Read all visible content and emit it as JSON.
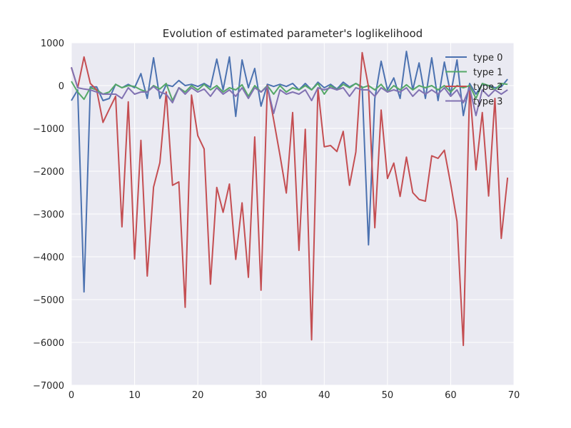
{
  "chart_data": {
    "type": "line",
    "title": "Evolution of estimated parameter's loglikelihood",
    "xlabel": "",
    "ylabel": "",
    "xlim": [
      0,
      70
    ],
    "ylim": [
      -7000,
      1000
    ],
    "x_ticks": [
      0,
      10,
      20,
      30,
      40,
      50,
      60,
      70
    ],
    "y_ticks": [
      1000,
      0,
      -1000,
      -2000,
      -3000,
      -4000,
      -5000,
      -6000,
      -7000
    ],
    "x_tick_labels": [
      "0",
      "10",
      "20",
      "30",
      "40",
      "50",
      "60",
      "70"
    ],
    "y_tick_labels": [
      "1000",
      "0",
      "−1000",
      "−2000",
      "−3000",
      "−4000",
      "−5000",
      "−6000",
      "−7000"
    ],
    "grid": true,
    "legend_position": "top-right",
    "background_color": "#eaeaf2",
    "series": [
      {
        "name": "type 0",
        "color": "#4c72b0",
        "values": [
          -350,
          -100,
          -4820,
          -30,
          -30,
          -350,
          -300,
          30,
          -50,
          30,
          -50,
          280,
          -300,
          650,
          -300,
          20,
          -20,
          120,
          0,
          30,
          -20,
          50,
          -40,
          620,
          -100,
          670,
          -720,
          600,
          -50,
          400,
          -480,
          30,
          -20,
          30,
          -20,
          50,
          -100,
          50,
          -100,
          80,
          -50,
          30,
          -80,
          80,
          -30,
          50,
          -30,
          -3720,
          -300,
          570,
          -100,
          180,
          -300,
          800,
          -100,
          530,
          -300,
          650,
          -350,
          550,
          -200,
          600,
          -700,
          50,
          -200,
          30,
          0,
          -50,
          -30,
          150
        ]
      },
      {
        "name": "type 1",
        "color": "#55a868",
        "values": [
          100,
          -150,
          -320,
          -50,
          -100,
          -200,
          -150,
          30,
          -50,
          0,
          -20,
          -100,
          -150,
          0,
          -80,
          50,
          -350,
          -50,
          -150,
          0,
          -100,
          30,
          -100,
          0,
          -150,
          -50,
          -100,
          20,
          -250,
          0,
          -150,
          0,
          -200,
          0,
          -150,
          -50,
          -100,
          0,
          -100,
          50,
          -200,
          0,
          -100,
          30,
          -50,
          50,
          -50,
          0,
          -100,
          30,
          -150,
          0,
          -100,
          20,
          -100,
          0,
          -50,
          0,
          -100,
          0,
          -150,
          0,
          -50,
          0,
          -300,
          50,
          0,
          -100,
          50,
          30
        ]
      },
      {
        "name": "type 2",
        "color": "#c44e52",
        "values": [
          420,
          -50,
          670,
          50,
          -100,
          -860,
          -550,
          -250,
          -3300,
          -380,
          -4050,
          -1280,
          -4450,
          -2370,
          -1800,
          -150,
          -2330,
          -2250,
          -5180,
          -220,
          -1170,
          -1480,
          -4640,
          -2380,
          -2960,
          -2300,
          -4060,
          -2740,
          -4480,
          -1200,
          -4780,
          0,
          -800,
          -1630,
          -2510,
          -630,
          -3850,
          -1020,
          -5940,
          -60,
          -1430,
          -1400,
          -1540,
          -1070,
          -2330,
          -1550,
          770,
          -30,
          -3320,
          -570,
          -2170,
          -1810,
          -2590,
          -1670,
          -2500,
          -2660,
          -2700,
          -1640,
          -1700,
          -1510,
          -2300,
          -3170,
          -6070,
          -30,
          -1970,
          -630,
          -2580,
          -300,
          -3570,
          -2150
        ]
      },
      {
        "name": "type 3",
        "color": "#8172b2",
        "values": [
          430,
          -50,
          -80,
          -100,
          -150,
          -200,
          -200,
          -200,
          -300,
          -50,
          -200,
          -150,
          -150,
          -20,
          -150,
          -200,
          -400,
          -50,
          -200,
          -50,
          -150,
          -80,
          -250,
          -50,
          -200,
          -100,
          -250,
          -50,
          -300,
          -50,
          -150,
          -20,
          -650,
          -100,
          -200,
          -150,
          -200,
          -100,
          -350,
          -50,
          -100,
          -50,
          -100,
          -50,
          -250,
          -50,
          -100,
          -100,
          -250,
          -50,
          -150,
          -100,
          -150,
          -50,
          -250,
          -100,
          -200,
          -100,
          -200,
          -50,
          -250,
          -100,
          -400,
          -50,
          -700,
          -100,
          -250,
          -100,
          -200,
          -100
        ]
      }
    ]
  }
}
